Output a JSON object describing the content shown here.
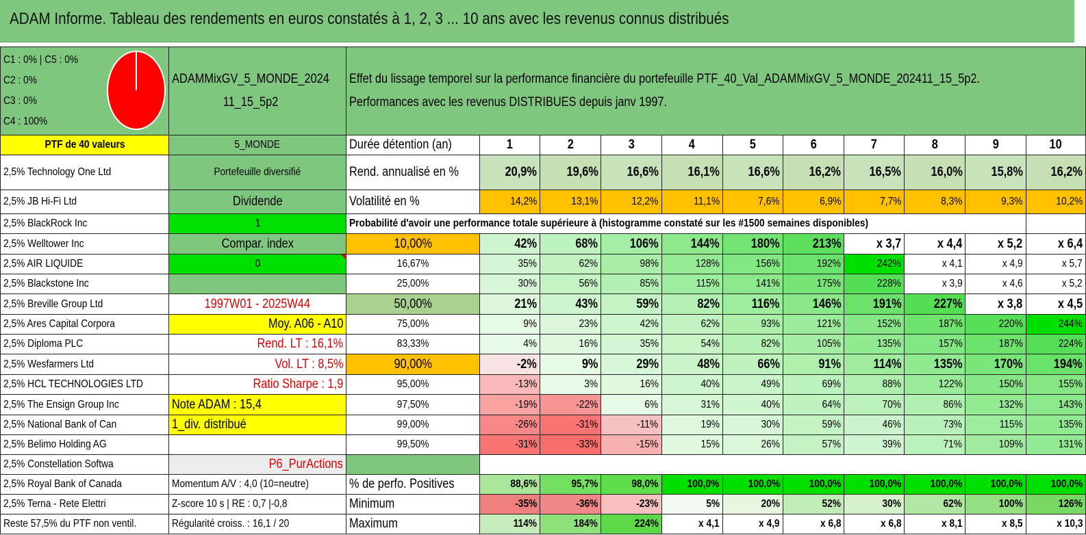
{
  "title": "ADAM Informe. Tableau des rendements en euros constatés à 1, 2, 3 ... 10 ans avec les revenus connus distribués",
  "legend": [
    "C1 : 0% | C5 : 0%",
    "C2 : 0%",
    "C3 : 0%",
    "C4 : 100%"
  ],
  "pie": {
    "fill": "#ff0000",
    "c4_share": 1.0
  },
  "portfolio_name": "ADAMMixGV_5_MONDE_202411_15_5p2",
  "description_line1": "Effet du lissage temporel sur la performance financière du portefeuille PTF_40_Val_ADAMMixGV_5_MONDE_202411_15_5p2.",
  "description_line2": "Performances avec les revenus DISTRIBUES depuis janv 1997.",
  "ptf_label": "PTF de 40 valeurs",
  "zone": "5_MONDE",
  "duration_label": "Durée détention (an)",
  "years": [
    "1",
    "2",
    "3",
    "4",
    "5",
    "6",
    "7",
    "8",
    "9",
    "10"
  ],
  "holdings": [
    "2,5% Technology One Ltd",
    "2,5% JB Hi-Fi Ltd",
    "2,5% BlackRock Inc",
    "2,5% Welltower Inc",
    "2,5% AIR LIQUIDE",
    "2,5% Blackstone Inc",
    "2,5% Breville Group Ltd",
    "2,5% Ares Capital Corpora",
    "2,5% Diploma PLC",
    "2,5% Wesfarmers Ltd",
    "2,5% HCL TECHNOLOGIES LTD",
    "2,5% The Ensign Group Inc",
    "2,5% National Bank of Can",
    "2,5% Belimo Holding AG",
    "2,5% Constellation Softwa",
    "2,5% Royal Bank of Canada",
    "2,5% Terna - Rete Elettri",
    "Reste 57,5% du PTF non ventil."
  ],
  "info": {
    "diversified": "Portefeuille diversifié",
    "dividend": "Dividende",
    "one": "1",
    "compar_index": "Compar. index",
    "zero": "0",
    "blank": "",
    "period": "1997W01 - 2025W44",
    "avg": "Moy. A06 - A10",
    "rend_lt": "Rend. LT : 16,1%",
    "vol_lt": "Vol. LT : 8,5%",
    "sharpe": "Ratio Sharpe : 1,9",
    "note": "Note ADAM : 15,4",
    "div": "1_div. distribué",
    "blank2": "",
    "p6": "P6_PurActions",
    "momentum": "Momentum A/V : 4,0 (10=neutre)",
    "zscore": "Z-score 10 s | RE : 0,7 |-0,8",
    "regularity": "Régularité croiss. : 16,1 / 20"
  },
  "rend_label": "Rend. annualisé en %",
  "rend_values": [
    "20,9%",
    "19,6%",
    "16,6%",
    "16,1%",
    "16,6%",
    "16,2%",
    "16,5%",
    "16,0%",
    "15,8%",
    "16,2%"
  ],
  "vol_label": "Volatilité en %",
  "vol_values": [
    "14,2%",
    "13,1%",
    "12,2%",
    "11,1%",
    "7,6%",
    "6,9%",
    "7,7%",
    "8,3%",
    "9,3%",
    "10,2%"
  ],
  "prob_header": "Probabilité d'avoir une performance totale supérieure à (histogramme constaté sur les #1500 semaines disponibles)",
  "prob_rows": [
    {
      "p": "10,00%",
      "v": [
        "42%",
        "68%",
        "106%",
        "144%",
        "180%",
        "213%",
        "x 3,7",
        "x 4,4",
        "x 5,2",
        "x 6,4"
      ]
    },
    {
      "p": "16,67%",
      "v": [
        "35%",
        "62%",
        "98%",
        "128%",
        "156%",
        "192%",
        "242%",
        "x 4,1",
        "x 4,9",
        "x 5,7"
      ]
    },
    {
      "p": "25,00%",
      "v": [
        "30%",
        "56%",
        "85%",
        "115%",
        "141%",
        "175%",
        "228%",
        "x 3,9",
        "x 4,6",
        "x 5,2"
      ]
    },
    {
      "p": "50,00%",
      "v": [
        "21%",
        "43%",
        "59%",
        "82%",
        "116%",
        "146%",
        "191%",
        "227%",
        "x 3,8",
        "x 4,5"
      ]
    },
    {
      "p": "75,00%",
      "v": [
        "9%",
        "23%",
        "42%",
        "62%",
        "93%",
        "121%",
        "152%",
        "187%",
        "220%",
        "244%"
      ]
    },
    {
      "p": "83,33%",
      "v": [
        "4%",
        "16%",
        "35%",
        "54%",
        "82%",
        "105%",
        "135%",
        "157%",
        "187%",
        "224%"
      ]
    },
    {
      "p": "90,00%",
      "v": [
        "-2%",
        "9%",
        "29%",
        "48%",
        "66%",
        "91%",
        "114%",
        "135%",
        "170%",
        "194%"
      ]
    },
    {
      "p": "95,00%",
      "v": [
        "-13%",
        "3%",
        "16%",
        "40%",
        "49%",
        "69%",
        "88%",
        "122%",
        "150%",
        "155%"
      ]
    },
    {
      "p": "97,50%",
      "v": [
        "-19%",
        "-22%",
        "6%",
        "31%",
        "40%",
        "64%",
        "70%",
        "86%",
        "132%",
        "143%"
      ]
    },
    {
      "p": "99,00%",
      "v": [
        "-26%",
        "-31%",
        "-11%",
        "19%",
        "30%",
        "59%",
        "46%",
        "73%",
        "115%",
        "135%"
      ]
    },
    {
      "p": "99,50%",
      "v": [
        "-31%",
        "-33%",
        "-15%",
        "15%",
        "26%",
        "57%",
        "39%",
        "71%",
        "109%",
        "131%"
      ]
    }
  ],
  "pos_label": "% de perfo. Positives",
  "pos_values": [
    "88,6%",
    "95,7%",
    "98,0%",
    "100,0%",
    "100,0%",
    "100,0%",
    "100,0%",
    "100,0%",
    "100,0%",
    "100,0%"
  ],
  "min_label": "Minimum",
  "min_values": [
    "-35%",
    "-36%",
    "-23%",
    "5%",
    "20%",
    "52%",
    "30%",
    "62%",
    "100%",
    "126%"
  ],
  "max_label": "Maximum",
  "max_values": [
    "114%",
    "184%",
    "224%",
    "x 4,1",
    "x 4,9",
    "x 6,8",
    "x 6,8",
    "x 8,1",
    "x 8,5",
    "x 10,3"
  ],
  "colors": {
    "header_green": "#7fc77f",
    "yellow": "#ffff00",
    "orange": "#ffc000",
    "lime": "#00e000",
    "red_text": "#e00000"
  }
}
